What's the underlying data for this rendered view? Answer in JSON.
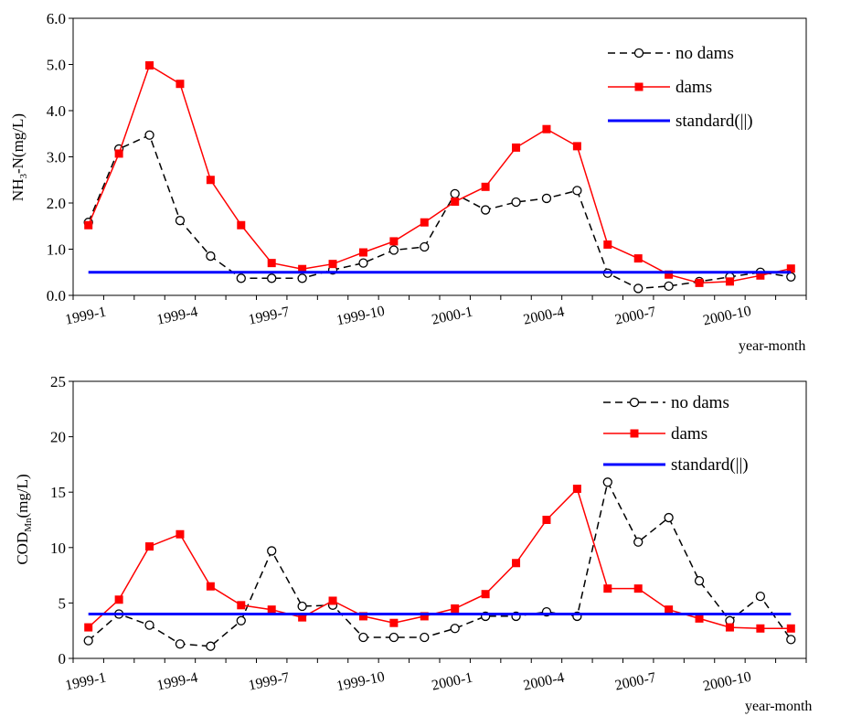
{
  "chart_data": [
    {
      "type": "line",
      "ylabel_main": "NH",
      "ylabel_sub": "3",
      "ylabel_rest": "-N(mg/L)",
      "xlabel": "year-month",
      "ylim": [
        0,
        6
      ],
      "y_ticks": [
        "0.0",
        "1.0",
        "2.0",
        "3.0",
        "4.0",
        "5.0",
        "6.0"
      ],
      "x_tick_labels": [
        "1999-1",
        "1999-4",
        "1999-7",
        "1999-10",
        "2000-1",
        "2000-4",
        "2000-7",
        "2000-10"
      ],
      "x_tick_index": [
        0,
        3,
        6,
        9,
        12,
        15,
        18,
        21
      ],
      "legend_position": "top-right",
      "series": [
        {
          "name": "no dams",
          "color": "#000000",
          "dashed": true,
          "marker": "open-circle",
          "values": [
            1.58,
            3.17,
            3.47,
            1.62,
            0.85,
            0.37,
            0.37,
            0.37,
            0.55,
            0.7,
            0.98,
            1.05,
            2.2,
            1.85,
            2.02,
            2.1,
            2.27,
            0.48,
            0.15,
            0.2,
            0.3,
            0.4,
            0.5,
            0.4
          ]
        },
        {
          "name": "dams",
          "color": "#ff0000",
          "dashed": false,
          "marker": "filled-square",
          "values": [
            1.52,
            3.07,
            4.98,
            4.58,
            2.5,
            1.52,
            0.7,
            0.57,
            0.68,
            0.93,
            1.17,
            1.58,
            2.03,
            2.35,
            3.2,
            3.6,
            3.23,
            1.1,
            0.8,
            0.45,
            0.27,
            0.3,
            0.43,
            0.58
          ]
        },
        {
          "name": "standard(||)",
          "color": "#0000ff",
          "constant": 0.5
        }
      ]
    },
    {
      "type": "line",
      "ylabel_main": "COD",
      "ylabel_sub": "Mn",
      "ylabel_rest": "(mg/L)",
      "xlabel": "year-month",
      "ylim": [
        0,
        25
      ],
      "y_ticks": [
        "0",
        "5",
        "10",
        "15",
        "20",
        "25"
      ],
      "x_tick_labels": [
        "1999-1",
        "1999-4",
        "1999-7",
        "1999-10",
        "2000-1",
        "2000-4",
        "2000-7",
        "2000-10"
      ],
      "x_tick_index": [
        0,
        3,
        6,
        9,
        12,
        15,
        18,
        21
      ],
      "legend_position": "top-right",
      "series": [
        {
          "name": "no dams",
          "color": "#000000",
          "dashed": true,
          "marker": "open-circle",
          "values": [
            1.6,
            4.0,
            3.0,
            1.3,
            1.1,
            3.4,
            9.7,
            4.7,
            4.8,
            1.9,
            1.9,
            1.9,
            2.7,
            3.8,
            3.8,
            4.2,
            3.8,
            15.9,
            10.5,
            12.7,
            7.0,
            3.4,
            5.6,
            1.7
          ]
        },
        {
          "name": "dams",
          "color": "#ff0000",
          "dashed": false,
          "marker": "filled-square",
          "values": [
            2.8,
            5.3,
            10.1,
            11.2,
            6.5,
            4.8,
            4.4,
            3.7,
            5.2,
            3.8,
            3.2,
            3.8,
            4.5,
            5.8,
            8.6,
            12.5,
            15.3,
            6.3,
            6.3,
            4.4,
            3.6,
            2.8,
            2.7,
            2.7
          ]
        },
        {
          "name": "standard(||)",
          "color": "#0000ff",
          "constant": 4
        }
      ]
    }
  ]
}
